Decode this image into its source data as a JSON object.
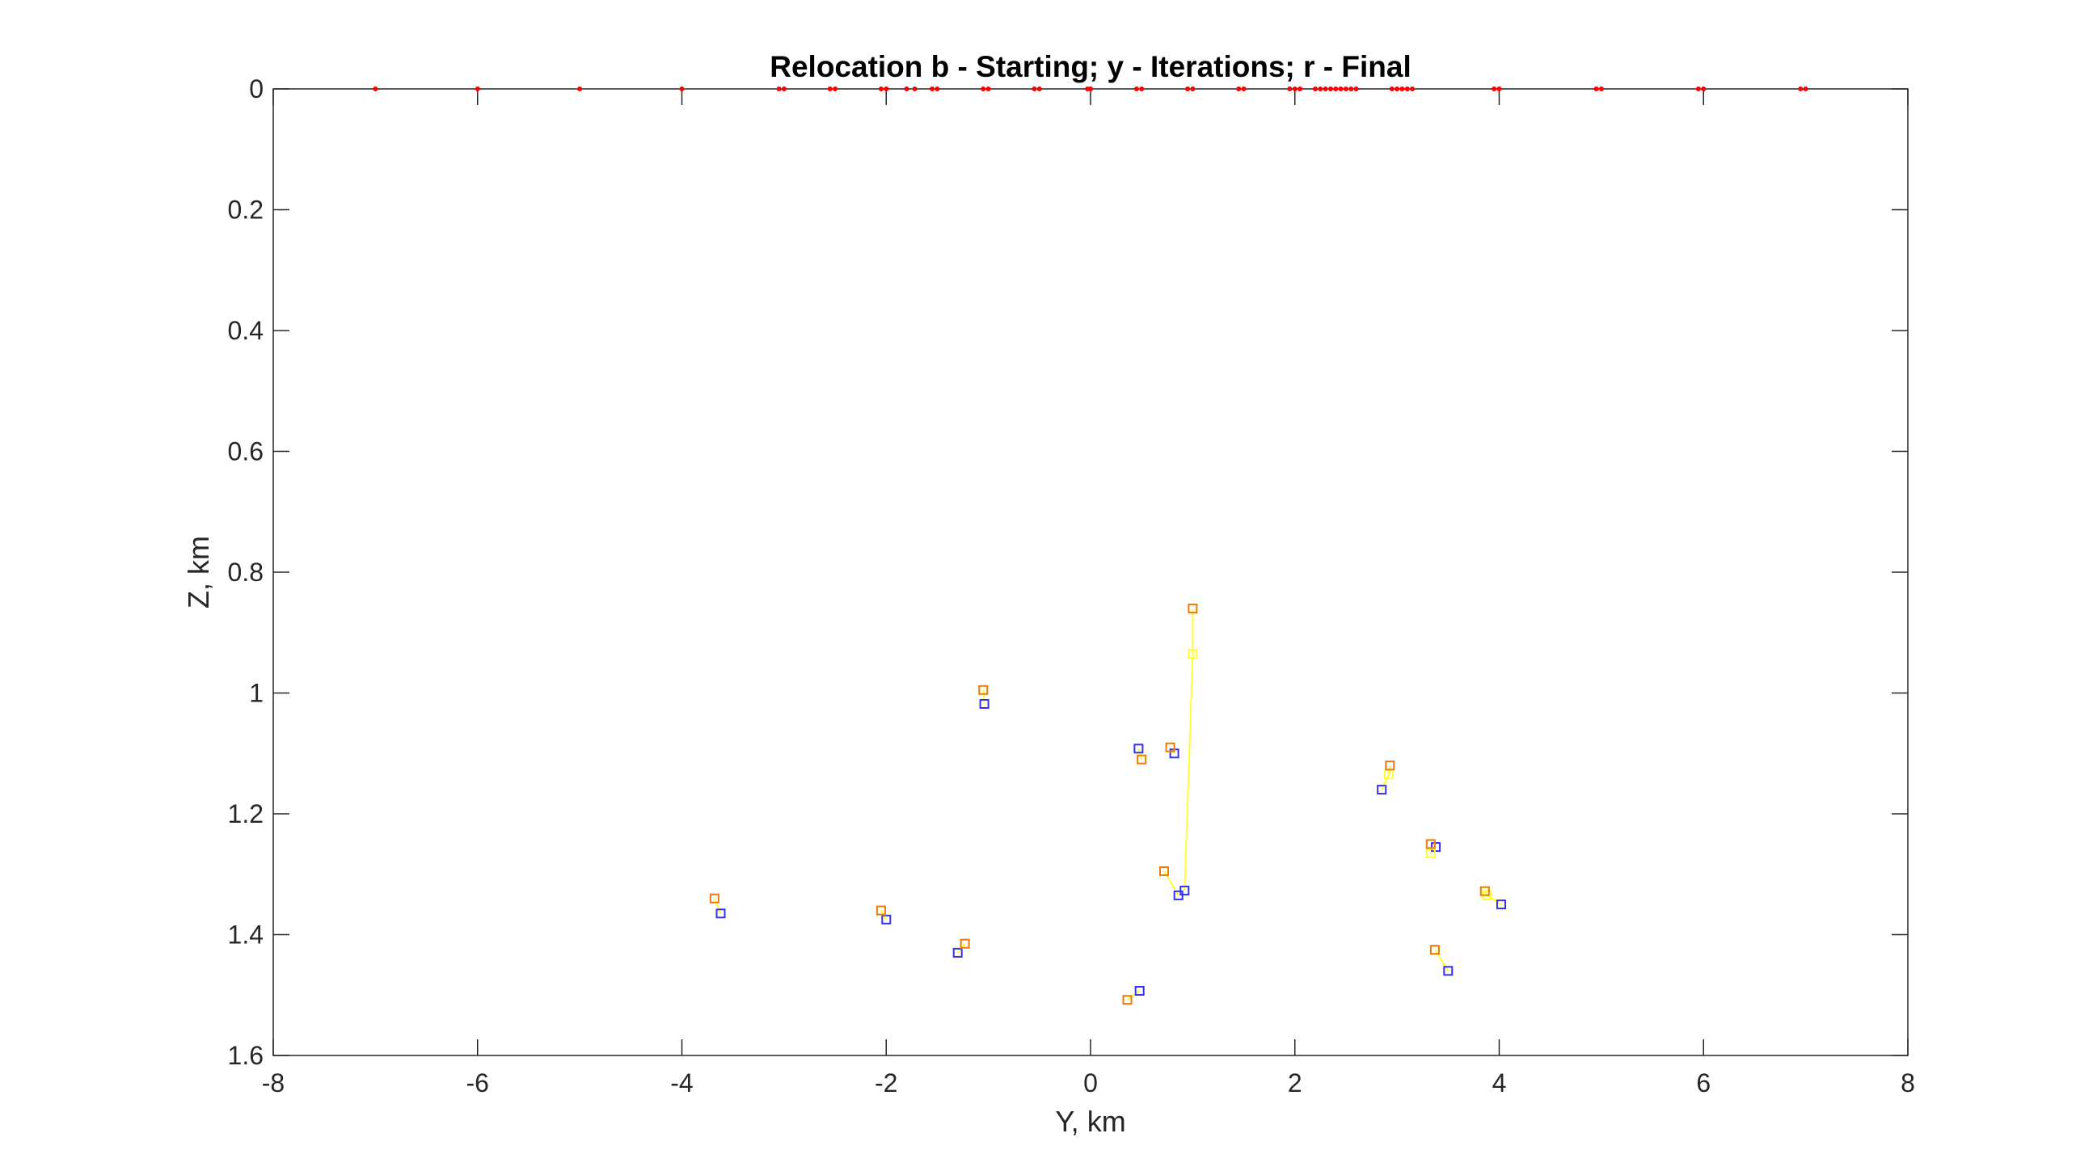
{
  "chart_data": {
    "type": "scatter",
    "title": "Relocation b - Starting; y - Iterations; r - Final",
    "xlabel": "Y, km",
    "ylabel": "Z, km",
    "xlim": [
      -8,
      8
    ],
    "ylim": [
      0,
      1.6
    ],
    "y_reversed": true,
    "grid": false,
    "box": true,
    "xticks": [
      -8,
      -6,
      -4,
      -2,
      0,
      2,
      4,
      6,
      8
    ],
    "yticks": [
      0,
      0.2,
      0.4,
      0.6,
      0.8,
      1,
      1.2,
      1.4,
      1.6
    ],
    "xtick_labels": [
      "-8",
      "-6",
      "-4",
      "-2",
      "0",
      "2",
      "4",
      "6",
      "8"
    ],
    "ytick_labels": [
      "0",
      "0.2",
      "0.4",
      "0.6",
      "0.8",
      "1",
      "1.2",
      "1.4",
      "1.6"
    ],
    "colors": {
      "starting": "#3333ee",
      "iterations": "#ffff33",
      "final": "#ee2222",
      "final_on_iteration": "#ee7a10",
      "stations": "#ff0000",
      "axes": "#262626"
    },
    "stations": {
      "y": [
        0,
        -7.0,
        -6.0,
        -5.0,
        -4.0,
        -3.05,
        -3.0,
        -2.55,
        -2.5,
        -2.05,
        -2.0,
        -1.8,
        -1.72,
        -1.55,
        -1.5,
        -1.05,
        -1.0,
        -0.55,
        -0.5,
        -0.03,
        0.0,
        0.45,
        0.5,
        0.95,
        1.0,
        1.45,
        1.5,
        1.95,
        2.0,
        2.05,
        2.2,
        2.25,
        2.3,
        2.35,
        2.4,
        2.45,
        2.5,
        2.55,
        2.6,
        2.95,
        3.0,
        3.05,
        3.1,
        3.15,
        3.95,
        4.0,
        4.95,
        5.0,
        5.95,
        6.0,
        6.95,
        7.0
      ],
      "z": 0
    },
    "events": [
      {
        "start": [
          -3.62,
          1.365
        ],
        "final": [
          -3.68,
          1.34
        ]
      },
      {
        "start": [
          -2.0,
          1.375
        ],
        "final": [
          -2.05,
          1.36
        ]
      },
      {
        "start": [
          -1.3,
          1.43
        ],
        "final": [
          -1.23,
          1.415
        ]
      },
      {
        "start": [
          -1.04,
          1.018
        ],
        "final": [
          -1.05,
          0.995
        ]
      },
      {
        "start": [
          0.47,
          1.092
        ],
        "final": [
          0.5,
          1.11
        ]
      },
      {
        "start": [
          0.48,
          1.493
        ],
        "final": [
          0.36,
          1.508
        ]
      },
      {
        "start": [
          0.82,
          1.1
        ],
        "final": [
          0.78,
          1.09
        ]
      },
      {
        "start": [
          0.92,
          1.327
        ],
        "iterations": [
          [
            1.0,
            0.935
          ]
        ],
        "final": [
          1.0,
          0.86
        ]
      },
      {
        "start": [
          0.86,
          1.335
        ],
        "final": [
          0.72,
          1.295
        ]
      },
      {
        "start": [
          2.85,
          1.16
        ],
        "iterations": [
          [
            2.92,
            1.135
          ]
        ],
        "final": [
          2.93,
          1.12
        ]
      },
      {
        "start": [
          3.38,
          1.255
        ],
        "iterations": [
          [
            3.33,
            1.265
          ]
        ],
        "final": [
          3.33,
          1.25
        ]
      },
      {
        "start": [
          4.02,
          1.35
        ],
        "iterations": [
          [
            3.88,
            1.335
          ]
        ],
        "final": [
          3.86,
          1.328
        ]
      },
      {
        "start": [
          3.5,
          1.46
        ],
        "final": [
          3.37,
          1.425
        ]
      }
    ]
  }
}
